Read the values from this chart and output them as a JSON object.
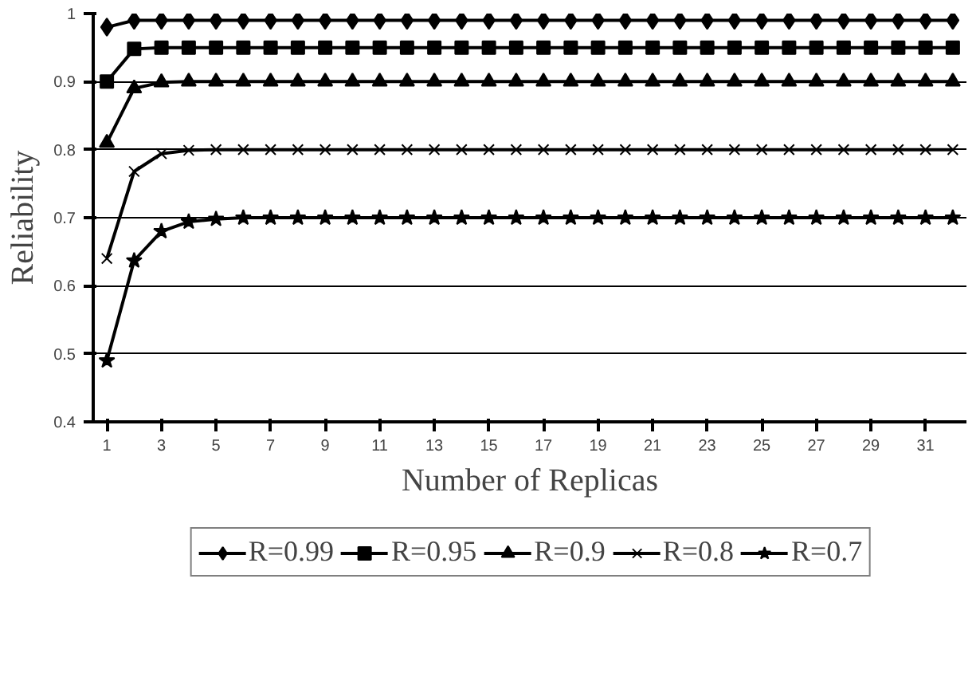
{
  "chart_data": {
    "type": "line",
    "xlabel": "Number of Replicas",
    "ylabel": "Reliability",
    "x": [
      1,
      2,
      3,
      4,
      5,
      6,
      7,
      8,
      9,
      10,
      11,
      12,
      13,
      14,
      15,
      16,
      17,
      18,
      19,
      20,
      21,
      22,
      23,
      24,
      25,
      26,
      27,
      28,
      29,
      30,
      31,
      32
    ],
    "xlim": [
      0.5,
      32.5
    ],
    "xticks": [
      1,
      3,
      5,
      7,
      9,
      11,
      13,
      15,
      17,
      19,
      21,
      23,
      25,
      27,
      29,
      31
    ],
    "ylim": [
      0.4,
      1
    ],
    "yticks": [
      0.4,
      0.5,
      0.6,
      0.7,
      0.8,
      0.9,
      1
    ],
    "grid": "y",
    "legend": "bottom",
    "line_style": "solid",
    "series": [
      {
        "name": "R=0.99",
        "color": "#000000",
        "marker": "diamond",
        "values": [
          0.98,
          0.99,
          0.99,
          0.99,
          0.99,
          0.99,
          0.99,
          0.99,
          0.99,
          0.99,
          0.99,
          0.99,
          0.99,
          0.99,
          0.99,
          0.99,
          0.99,
          0.99,
          0.99,
          0.99,
          0.99,
          0.99,
          0.99,
          0.99,
          0.99,
          0.99,
          0.99,
          0.99,
          0.99,
          0.99,
          0.99,
          0.99
        ]
      },
      {
        "name": "R=0.95",
        "color": "#000000",
        "marker": "square",
        "values": [
          0.9,
          0.948,
          0.95,
          0.95,
          0.95,
          0.95,
          0.95,
          0.95,
          0.95,
          0.95,
          0.95,
          0.95,
          0.95,
          0.95,
          0.95,
          0.95,
          0.95,
          0.95,
          0.95,
          0.95,
          0.95,
          0.95,
          0.95,
          0.95,
          0.95,
          0.95,
          0.95,
          0.95,
          0.95,
          0.95,
          0.95,
          0.95
        ]
      },
      {
        "name": "R=0.9",
        "color": "#000000",
        "marker": "triangle",
        "values": [
          0.81,
          0.89,
          0.899,
          0.9,
          0.9,
          0.9,
          0.9,
          0.9,
          0.9,
          0.9,
          0.9,
          0.9,
          0.9,
          0.9,
          0.9,
          0.9,
          0.9,
          0.9,
          0.9,
          0.9,
          0.9,
          0.9,
          0.9,
          0.9,
          0.9,
          0.9,
          0.9,
          0.9,
          0.9,
          0.9,
          0.9,
          0.9
        ]
      },
      {
        "name": "R=0.8",
        "color": "#000000",
        "marker": "cross",
        "values": [
          0.64,
          0.768,
          0.794,
          0.799,
          0.8,
          0.8,
          0.8,
          0.8,
          0.8,
          0.8,
          0.8,
          0.8,
          0.8,
          0.8,
          0.8,
          0.8,
          0.8,
          0.8,
          0.8,
          0.8,
          0.8,
          0.8,
          0.8,
          0.8,
          0.8,
          0.8,
          0.8,
          0.8,
          0.8,
          0.8,
          0.8,
          0.8
        ]
      },
      {
        "name": "R=0.7",
        "color": "#000000",
        "marker": "star",
        "values": [
          0.49,
          0.637,
          0.68,
          0.694,
          0.698,
          0.7,
          0.7,
          0.7,
          0.7,
          0.7,
          0.7,
          0.7,
          0.7,
          0.7,
          0.7,
          0.7,
          0.7,
          0.7,
          0.7,
          0.7,
          0.7,
          0.7,
          0.7,
          0.7,
          0.7,
          0.7,
          0.7,
          0.7,
          0.7,
          0.7,
          0.7,
          0.7
        ]
      }
    ]
  }
}
